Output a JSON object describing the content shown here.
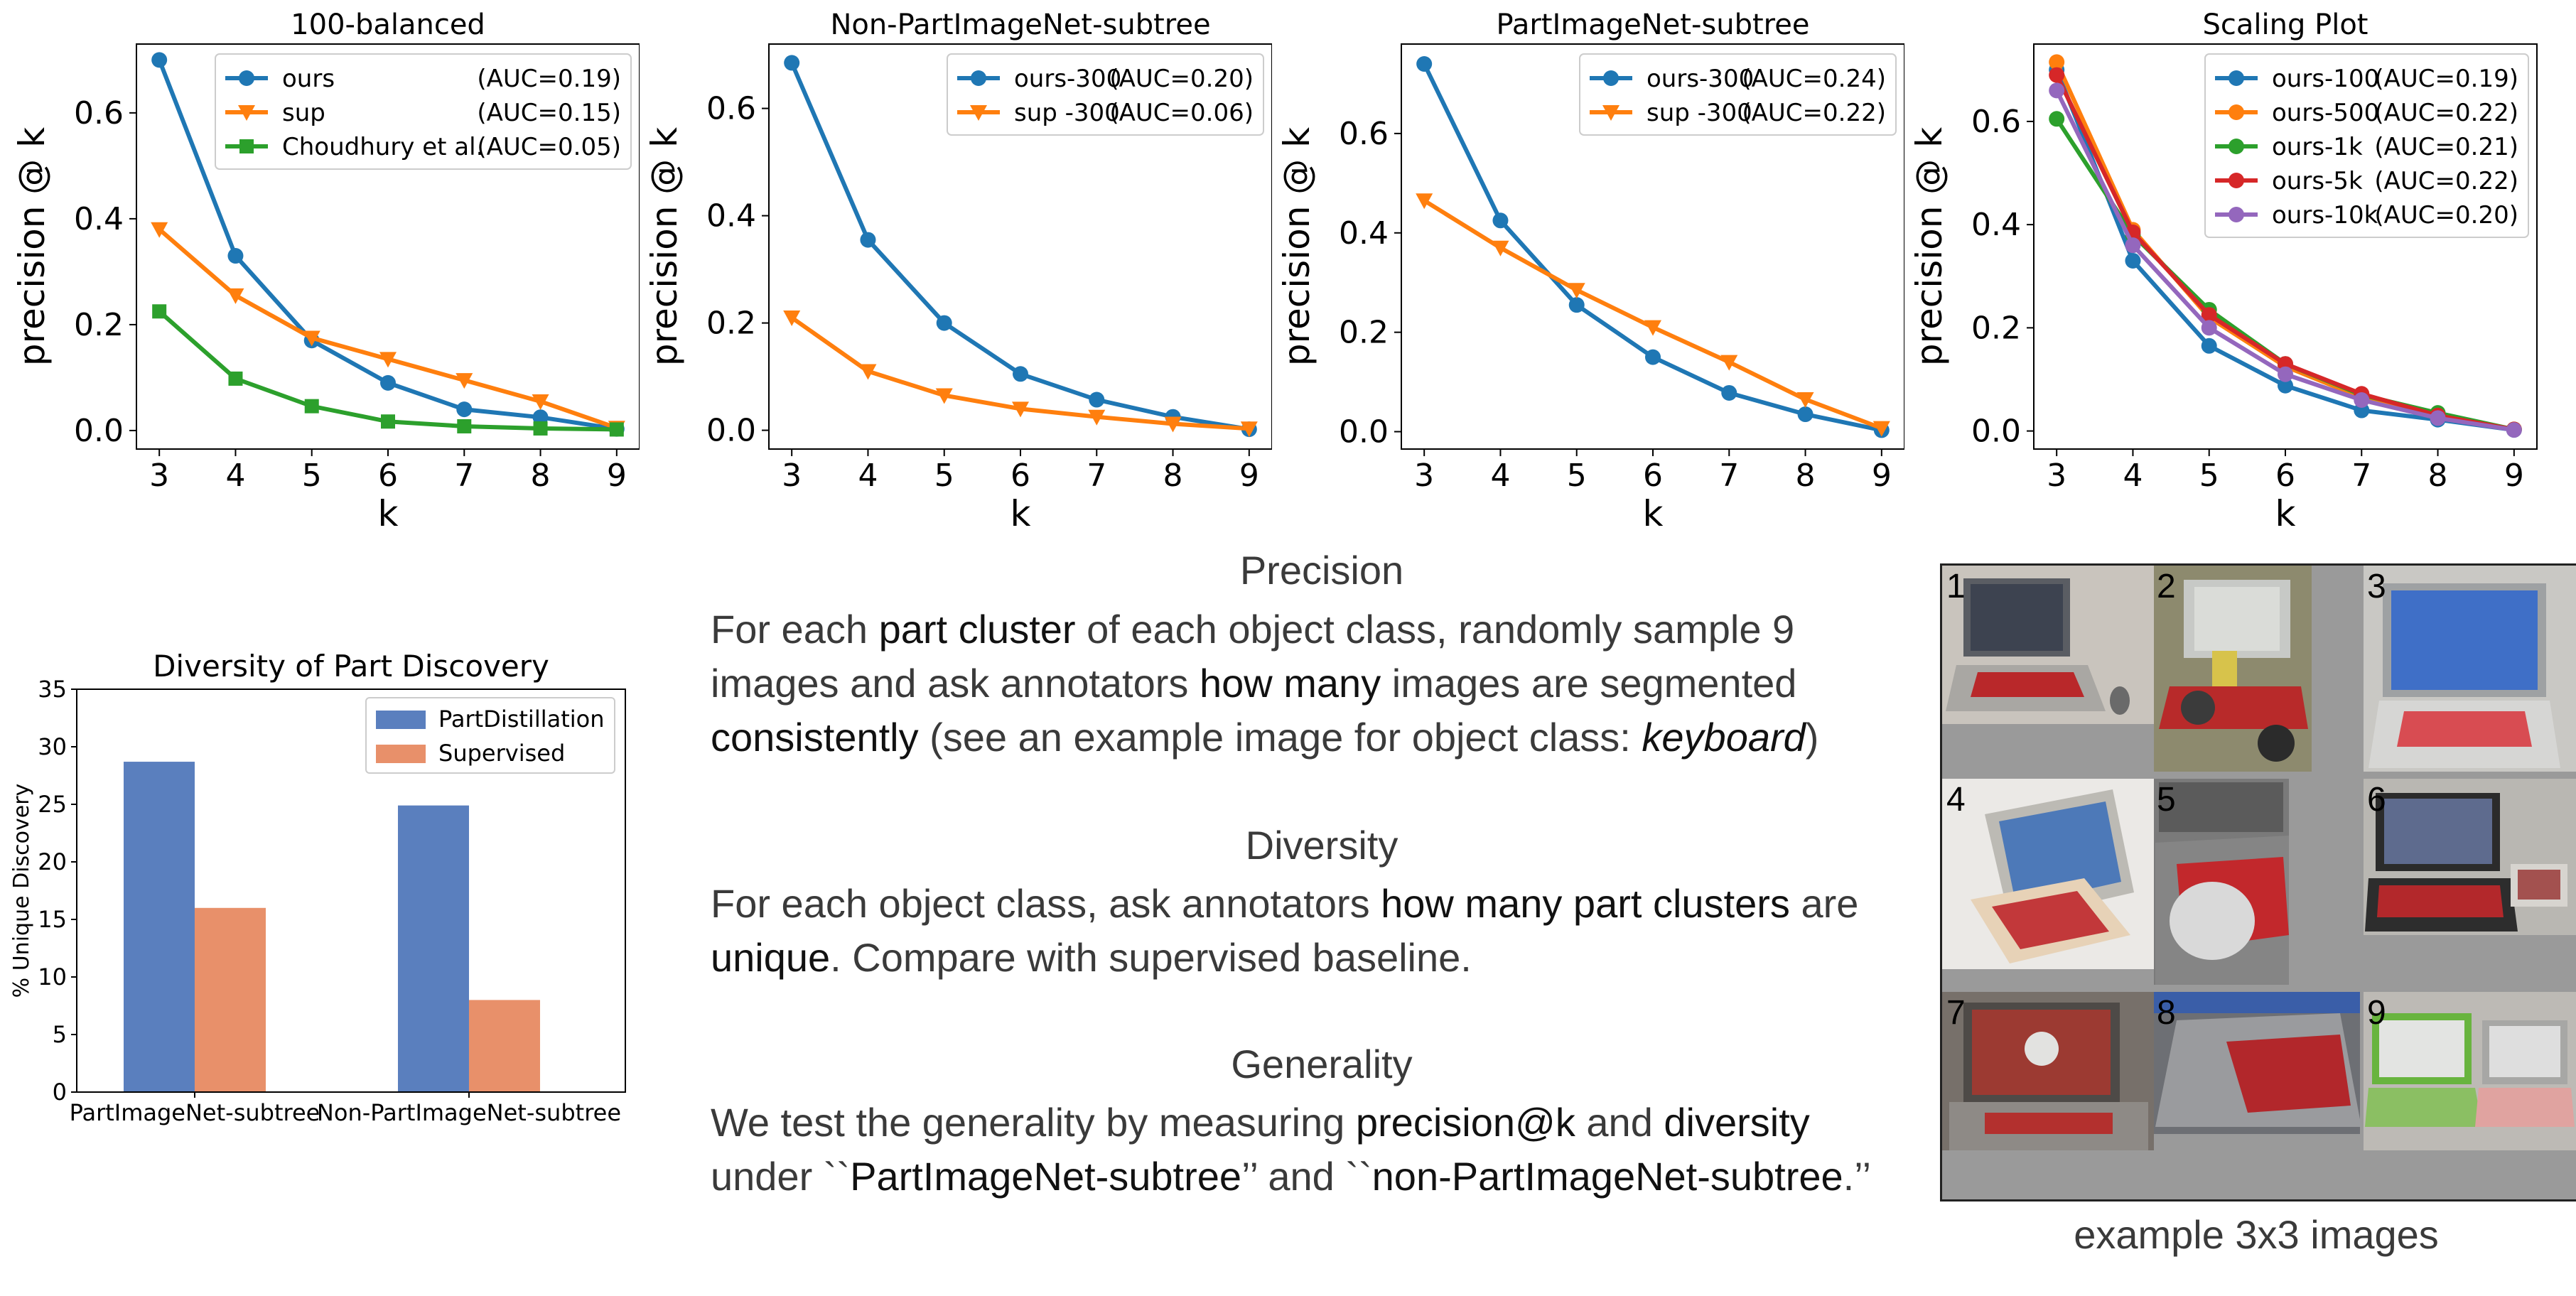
{
  "chart_data": [
    {
      "type": "line",
      "title": "100-balanced",
      "xlabel": "k",
      "ylabel": "precision @ k",
      "x": [
        3,
        4,
        5,
        6,
        7,
        8,
        9
      ],
      "xlim": [
        2.7,
        9.3
      ],
      "ylim": [
        -0.035,
        0.73
      ],
      "yticks": [
        0.0,
        0.2,
        0.4,
        0.6
      ],
      "ytick_labels": [
        "0.0",
        "0.2",
        "0.4",
        "0.6"
      ],
      "legend_placement": "upper right",
      "series": [
        {
          "name": "ours",
          "auc": "(AUC=0.19)",
          "color": "#1f77b4",
          "marker": "circle",
          "values": [
            0.7,
            0.33,
            0.17,
            0.09,
            0.04,
            0.025,
            0.003
          ]
        },
        {
          "name": "sup",
          "auc": "(AUC=0.15)",
          "color": "#ff7f0e",
          "marker": "triangle-down",
          "values": [
            0.38,
            0.255,
            0.175,
            0.135,
            0.095,
            0.055,
            0.005
          ]
        },
        {
          "name": "Choudhury et al.",
          "auc": "(AUC=0.05)",
          "color": "#2ca02c",
          "marker": "square",
          "values": [
            0.225,
            0.098,
            0.046,
            0.017,
            0.008,
            0.004,
            0.002
          ]
        }
      ]
    },
    {
      "type": "line",
      "title": "Non-PartImageNet-subtree",
      "xlabel": "k",
      "ylabel": "precision @ k",
      "x": [
        3,
        4,
        5,
        6,
        7,
        8,
        9
      ],
      "xlim": [
        2.7,
        9.3
      ],
      "ylim": [
        -0.035,
        0.72
      ],
      "yticks": [
        0.0,
        0.2,
        0.4,
        0.6
      ],
      "ytick_labels": [
        "0.0",
        "0.2",
        "0.4",
        "0.6"
      ],
      "legend_placement": "upper right",
      "series": [
        {
          "name": "ours-300",
          "auc": "(AUC=0.20)",
          "color": "#1f77b4",
          "marker": "circle",
          "values": [
            0.685,
            0.355,
            0.2,
            0.105,
            0.057,
            0.025,
            0.002
          ]
        },
        {
          "name": "sup -300",
          "auc": "(AUC=0.06)",
          "color": "#ff7f0e",
          "marker": "triangle-down",
          "values": [
            0.21,
            0.11,
            0.065,
            0.04,
            0.025,
            0.012,
            0.003
          ]
        }
      ]
    },
    {
      "type": "line",
      "title": "PartImageNet-subtree",
      "xlabel": "k",
      "ylabel": "precision @ k",
      "x": [
        3,
        4,
        5,
        6,
        7,
        8,
        9
      ],
      "xlim": [
        2.7,
        9.3
      ],
      "ylim": [
        -0.035,
        0.78
      ],
      "yticks": [
        0.0,
        0.2,
        0.4,
        0.6
      ],
      "ytick_labels": [
        "0.0",
        "0.2",
        "0.4",
        "0.6"
      ],
      "legend_placement": "upper right",
      "series": [
        {
          "name": "ours-300",
          "auc": "(AUC=0.24)",
          "color": "#1f77b4",
          "marker": "circle",
          "values": [
            0.74,
            0.425,
            0.255,
            0.15,
            0.078,
            0.035,
            0.003
          ]
        },
        {
          "name": "sup -300",
          "auc": "(AUC=0.22)",
          "color": "#ff7f0e",
          "marker": "triangle-down",
          "values": [
            0.465,
            0.37,
            0.285,
            0.21,
            0.14,
            0.065,
            0.007
          ]
        }
      ]
    },
    {
      "type": "line",
      "title": "Scaling Plot",
      "xlabel": "k",
      "ylabel": "precision @ k",
      "x": [
        3,
        4,
        5,
        6,
        7,
        8,
        9
      ],
      "xlim": [
        2.7,
        9.3
      ],
      "ylim": [
        -0.035,
        0.75
      ],
      "yticks": [
        0.0,
        0.2,
        0.4,
        0.6
      ],
      "ytick_labels": [
        "0.0",
        "0.2",
        "0.4",
        "0.6"
      ],
      "legend_placement": "upper right",
      "series": [
        {
          "name": "ours-100",
          "auc": "(AUC=0.19)",
          "color": "#1f77b4",
          "marker": "circle",
          "values": [
            0.7,
            0.33,
            0.165,
            0.088,
            0.04,
            0.022,
            0.002
          ]
        },
        {
          "name": "ours-500",
          "auc": "(AUC=0.22)",
          "color": "#ff7f0e",
          "marker": "circle",
          "values": [
            0.715,
            0.39,
            0.22,
            0.125,
            0.065,
            0.03,
            0.003
          ]
        },
        {
          "name": "ours-1k",
          "auc": "(AUC=0.21)",
          "color": "#2ca02c",
          "marker": "circle",
          "values": [
            0.605,
            0.38,
            0.235,
            0.13,
            0.07,
            0.035,
            0.003
          ]
        },
        {
          "name": "ours-5k",
          "auc": "(AUC=0.22)",
          "color": "#d62728",
          "marker": "circle",
          "values": [
            0.69,
            0.385,
            0.225,
            0.13,
            0.072,
            0.03,
            0.003
          ]
        },
        {
          "name": "ours-10k",
          "auc": "(AUC=0.20)",
          "color": "#9467bd",
          "marker": "circle",
          "values": [
            0.66,
            0.36,
            0.2,
            0.11,
            0.06,
            0.025,
            0.002
          ]
        }
      ]
    },
    {
      "type": "bar",
      "title": "Diversity of Part Discovery",
      "xlabel": "",
      "ylabel": "% Unique Discovery",
      "categories": [
        "PartImageNet-subtree",
        "Non-PartImageNet-subtree"
      ],
      "ylim": [
        0,
        35
      ],
      "yticks": [
        0,
        5,
        10,
        15,
        20,
        25,
        30,
        35
      ],
      "legend_placement": "upper right",
      "series": [
        {
          "name": "PartDistillation",
          "color": "#5a7fbe",
          "values": [
            28.7,
            24.9
          ]
        },
        {
          "name": "Supervised",
          "color": "#e8906a",
          "values": [
            16.0,
            8.0
          ]
        }
      ]
    }
  ],
  "text": {
    "precision_title": "Precision",
    "precision_lines": [
      [
        "For each ",
        "part cluster",
        " of each object class, randomly sample 9"
      ],
      [
        "images and ask annotators ",
        "how many",
        " images are segmented"
      ],
      [
        "",
        "consistently",
        " (see an example image for object class: ",
        "keyboard",
        ")"
      ]
    ],
    "diversity_title": "Diversity",
    "diversity_lines": [
      [
        "For each object class, ask annotators ",
        "how many part clusters",
        " are"
      ],
      [
        "",
        "unique",
        ". Compare with supervised baseline."
      ]
    ],
    "generality_title": "Generality",
    "generality_lines": [
      [
        "We test the generality by measuring ",
        "precision@k",
        " and ",
        "diversity"
      ],
      [
        "under ``",
        "PartImageNet-subtree",
        "’’ and ``",
        "non-PartImageNet-subtree",
        ".’’"
      ]
    ],
    "grid_numbers": [
      "1",
      "2",
      "3",
      "4",
      "5",
      "6",
      "7",
      "8",
      "9"
    ],
    "grid_caption": "example 3x3 images"
  }
}
